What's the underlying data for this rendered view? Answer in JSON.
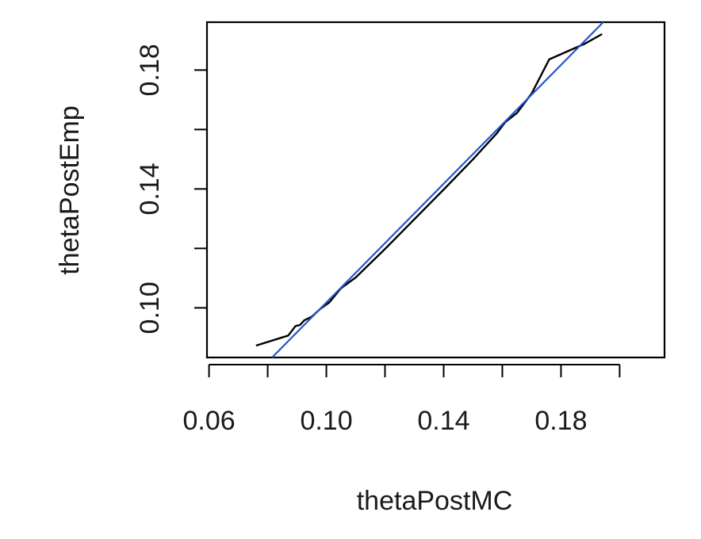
{
  "chart_data": {
    "type": "line",
    "xlabel": "thetaPostMC",
    "ylabel": "thetaPostEmp",
    "xlim": [
      0.0593,
      0.2153
    ],
    "ylim": [
      0.0833,
      0.1961
    ],
    "x_ticks": [
      0.06,
      0.08,
      0.1,
      0.12,
      0.14,
      0.16,
      0.18,
      0.2
    ],
    "x_tick_labels": [
      "0.06",
      "",
      "0.10",
      "",
      "0.14",
      "",
      "0.18",
      ""
    ],
    "y_ticks": [
      0.1,
      0.12,
      0.14,
      0.16,
      0.18
    ],
    "y_tick_labels": [
      "0.10",
      "",
      "0.14",
      "",
      "0.18"
    ],
    "grid": false,
    "series": [
      {
        "color": "#000000",
        "points": [
          [
            0.076,
            0.0873
          ],
          [
            0.087,
            0.0907
          ],
          [
            0.0895,
            0.0939
          ],
          [
            0.091,
            0.0942
          ],
          [
            0.0925,
            0.0958
          ],
          [
            0.095,
            0.097
          ],
          [
            0.098,
            0.0997
          ],
          [
            0.101,
            0.1018
          ],
          [
            0.105,
            0.1066
          ],
          [
            0.11,
            0.1102
          ],
          [
            0.12,
            0.1198
          ],
          [
            0.13,
            0.1298
          ],
          [
            0.14,
            0.1398
          ],
          [
            0.15,
            0.15
          ],
          [
            0.158,
            0.1586
          ],
          [
            0.161,
            0.1625
          ],
          [
            0.165,
            0.1656
          ],
          [
            0.17,
            0.1721
          ],
          [
            0.176,
            0.1836
          ],
          [
            0.188,
            0.1888
          ],
          [
            0.194,
            0.1921
          ]
        ]
      },
      {
        "color": "#2255cc",
        "points": [
          [
            0.0815,
            0.0833
          ],
          [
            0.1944,
            0.1961
          ]
        ]
      }
    ]
  }
}
